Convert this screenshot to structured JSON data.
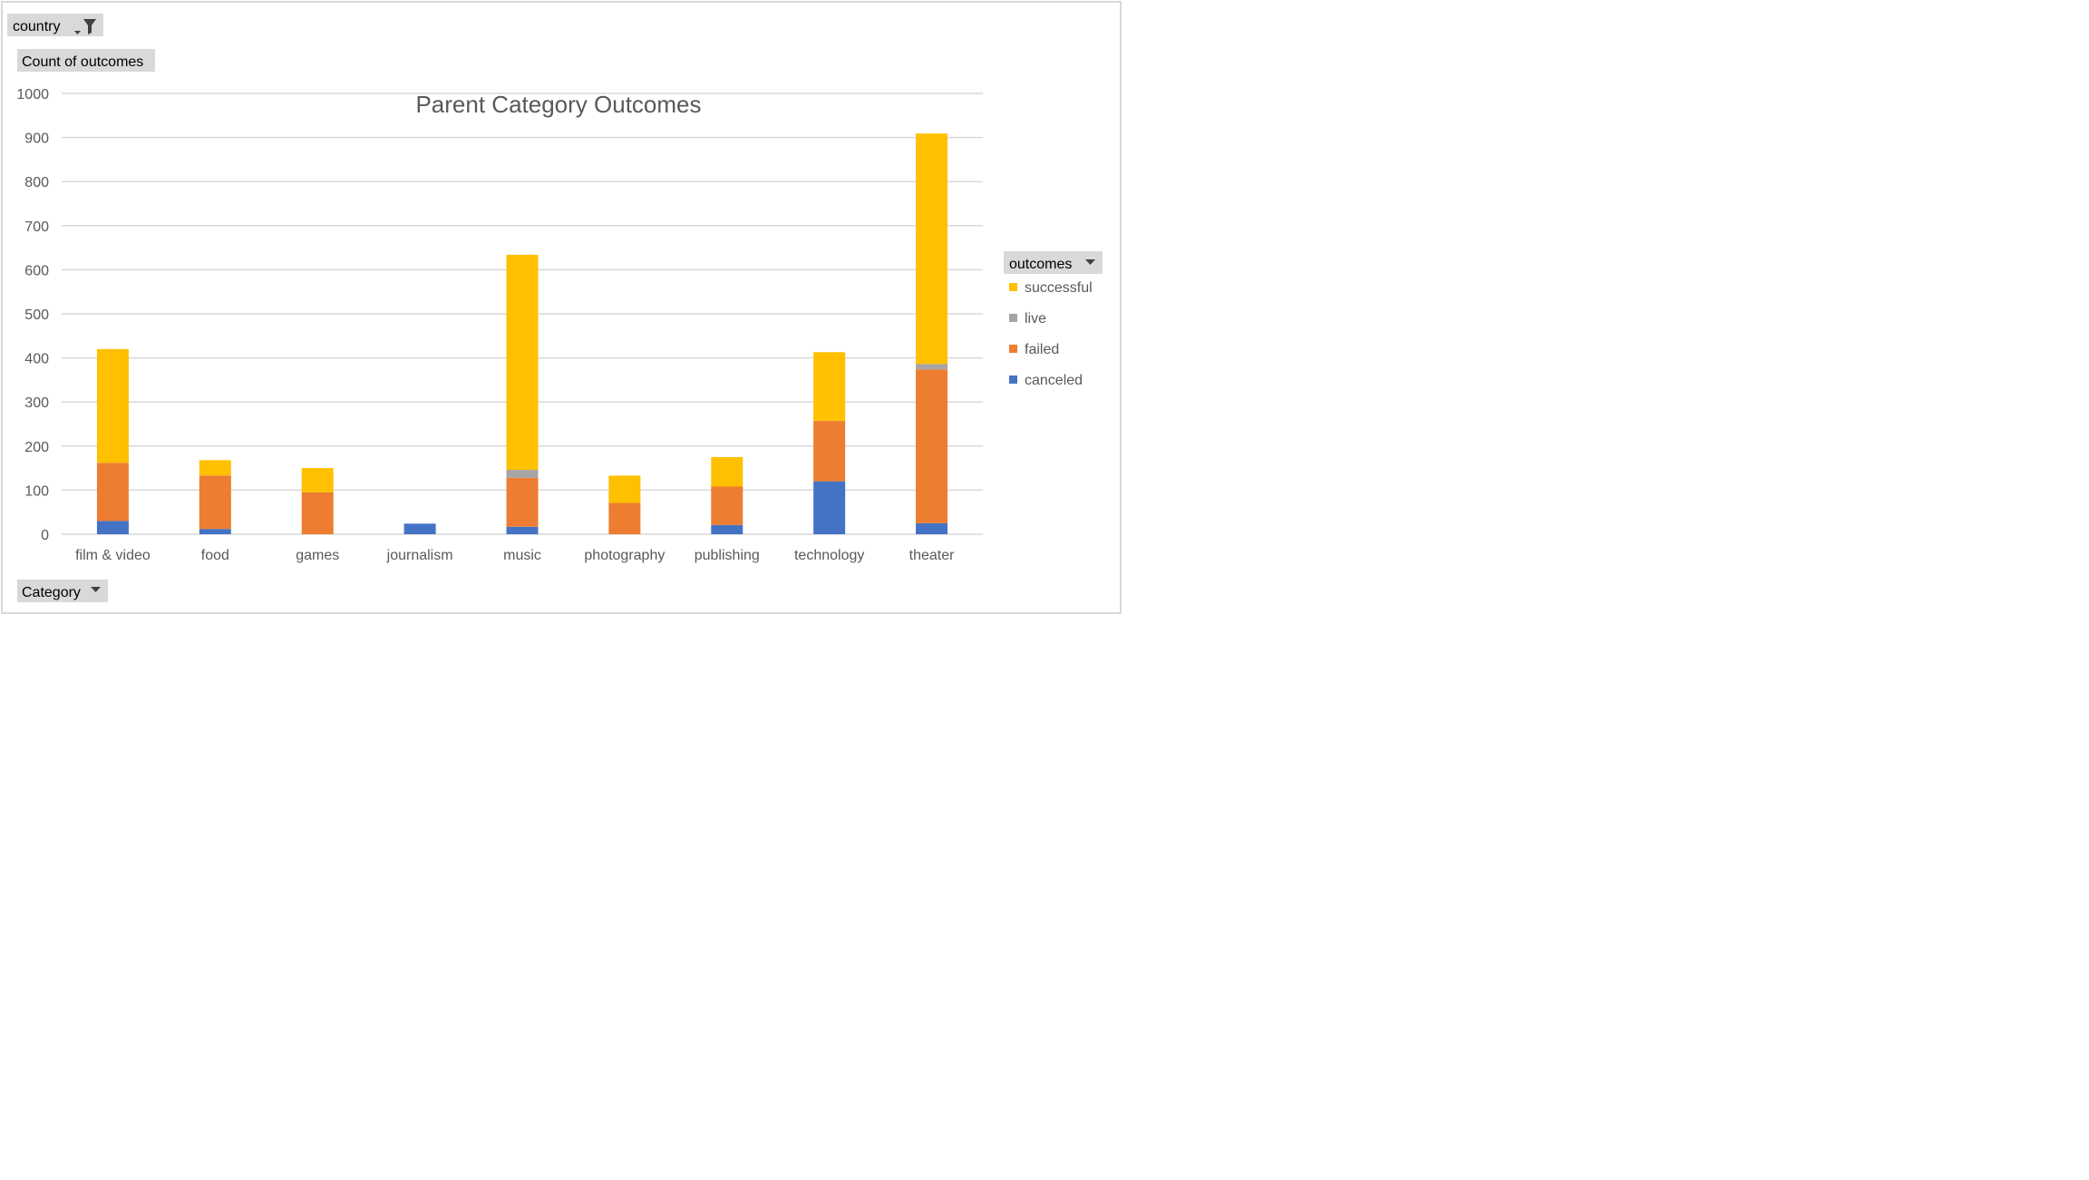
{
  "filters": {
    "country_label": "country",
    "values_label": "Count of outcomes",
    "category_label": "Category",
    "outcomes_label": "outcomes"
  },
  "icons": {
    "country_filter": "filter-icon",
    "dropdown": "dropdown-arrow-icon"
  },
  "colors": {
    "canceled": "#4472C4",
    "failed": "#ED7D31",
    "live": "#A5A5A5",
    "successful": "#FFC000",
    "button_bg": "#D9D9D9",
    "gridline": "#D9D9D9",
    "border": "#D9D9D9"
  },
  "chart_data": {
    "type": "bar",
    "stacked": true,
    "title": "Parent Category Outcomes",
    "xlabel": "",
    "ylabel": "",
    "ylim": [
      0,
      1000
    ],
    "yticks": [
      0,
      100,
      200,
      300,
      400,
      500,
      600,
      700,
      800,
      900,
      1000
    ],
    "grid": true,
    "legend_position": "right",
    "categories": [
      "film & video",
      "food",
      "games",
      "journalism",
      "music",
      "photography",
      "publishing",
      "technology",
      "theater"
    ],
    "series": [
      {
        "name": "canceled",
        "values": [
          30,
          12,
          0,
          24,
          17,
          0,
          21,
          120,
          25
        ]
      },
      {
        "name": "failed",
        "values": [
          132,
          121,
          95,
          0,
          111,
          71,
          87,
          137,
          349
        ]
      },
      {
        "name": "live",
        "values": [
          0,
          0,
          0,
          0,
          18,
          0,
          0,
          0,
          12
        ]
      },
      {
        "name": "successful",
        "values": [
          258,
          35,
          55,
          0,
          488,
          62,
          67,
          156,
          523
        ]
      }
    ],
    "legend_order": [
      "successful",
      "live",
      "failed",
      "canceled"
    ]
  }
}
